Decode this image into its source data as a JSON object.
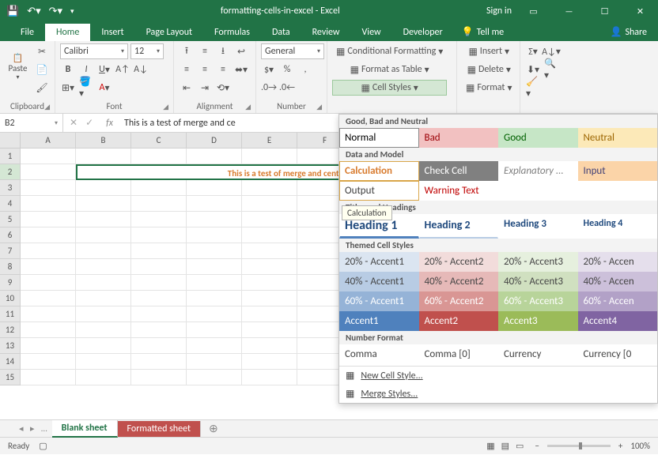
{
  "titlebar": {
    "title": "formatting-cells-in-excel - Excel",
    "signin": "Sign in"
  },
  "tabs": [
    "File",
    "Home",
    "Insert",
    "Page Layout",
    "Formulas",
    "Data",
    "Review",
    "View",
    "Developer"
  ],
  "active_tab": "Home",
  "tellme": "Tell me",
  "share": "Share",
  "ribbon": {
    "clipboard": "Clipboard",
    "paste": "Paste",
    "font_group": "Font",
    "font_name": "Calibri",
    "font_size": "12",
    "alignment": "Alignment",
    "number": "Number",
    "number_format": "General",
    "cond_fmt": "Conditional Formatting",
    "table_fmt": "Format as Table",
    "cell_styles": "Cell Styles",
    "insert": "Insert",
    "delete": "Delete",
    "format": "Format"
  },
  "namebox": "B2",
  "formula": "This is a test of merge and ce",
  "columns": [
    "A",
    "B",
    "C",
    "D",
    "E",
    "F"
  ],
  "row_count": 15,
  "merged_text": "This is a test of merge and center.",
  "gallery": {
    "sec1": "Good, Bad and Neutral",
    "row1": [
      {
        "label": "Normal",
        "bg": "#ffffff",
        "color": "#000",
        "border": "1px solid #888"
      },
      {
        "label": "Bad",
        "bg": "#f2c1c1",
        "color": "#9c0006"
      },
      {
        "label": "Good",
        "bg": "#c6e6c6",
        "color": "#006100"
      },
      {
        "label": "Neutral",
        "bg": "#fce9b8",
        "color": "#9c6500"
      }
    ],
    "sec2": "Data and Model",
    "row2": [
      {
        "label": "Calculation",
        "bg": "#ffffff",
        "color": "#d87b2e",
        "border": "1px solid #d9a64a",
        "bold": true
      },
      {
        "label": "Check Cell",
        "bg": "#808080",
        "color": "#ffffff"
      },
      {
        "label": "Explanatory ...",
        "bg": "#ffffff",
        "color": "#808080",
        "italic": true
      },
      {
        "label": "Input",
        "bg": "#fbd4a8",
        "color": "#3f3f76"
      }
    ],
    "row3": [
      {
        "label": "Output",
        "bg": "#ffffff",
        "color": "#3f3f3f",
        "border": "1px solid #d9a64a"
      },
      {
        "label": "Warning Text",
        "bg": "#ffffff",
        "color": "#c00000"
      }
    ],
    "tooltip": "Calculation",
    "sec3": "Titles and Headings",
    "row4": [
      {
        "label": "Heading 1",
        "color": "#1f497d",
        "size": "16px",
        "bold": true,
        "underline": "3px solid #4f81bd"
      },
      {
        "label": "Heading 2",
        "color": "#1f497d",
        "size": "14px",
        "bold": true,
        "underline": "2px solid #b8cce4"
      },
      {
        "label": "Heading 3",
        "color": "#1f497d",
        "size": "13px",
        "bold": true
      },
      {
        "label": "Heading 4",
        "color": "#1f497d",
        "size": "12px",
        "bold": true
      }
    ],
    "sec4": "Themed Cell Styles",
    "themed": [
      [
        {
          "label": "20% - Accent1",
          "bg": "#dbe5f1"
        },
        {
          "label": "20% - Accent2",
          "bg": "#f2dcdb"
        },
        {
          "label": "20% - Accent3",
          "bg": "#e6f0de"
        },
        {
          "label": "20% - Accen",
          "bg": "#e5dfec"
        }
      ],
      [
        {
          "label": "40% - Accent1",
          "bg": "#b8cce4"
        },
        {
          "label": "40% - Accent2",
          "bg": "#e6b9b8"
        },
        {
          "label": "40% - Accent3",
          "bg": "#d0e0c0"
        },
        {
          "label": "40% - Accen",
          "bg": "#ccc0da"
        }
      ],
      [
        {
          "label": "60% - Accent1",
          "bg": "#95b3d7",
          "color": "#fff"
        },
        {
          "label": "60% - Accent2",
          "bg": "#d99694",
          "color": "#fff"
        },
        {
          "label": "60% - Accent3",
          "bg": "#b8d49a",
          "color": "#fff"
        },
        {
          "label": "60% - Accen",
          "bg": "#b2a1c7",
          "color": "#fff"
        }
      ],
      [
        {
          "label": "Accent1",
          "bg": "#4f81bd",
          "color": "#fff"
        },
        {
          "label": "Accent2",
          "bg": "#c0504d",
          "color": "#fff"
        },
        {
          "label": "Accent3",
          "bg": "#9bbb59",
          "color": "#fff"
        },
        {
          "label": "Accent4",
          "bg": "#8064a2",
          "color": "#fff"
        }
      ]
    ],
    "sec5": "Number Format",
    "row5": [
      {
        "label": "Comma"
      },
      {
        "label": "Comma [0]"
      },
      {
        "label": "Currency"
      },
      {
        "label": "Currency [0"
      }
    ],
    "new_style": "New Cell Style...",
    "merge_styles": "Merge Styles..."
  },
  "sheets": {
    "blank": "Blank sheet",
    "formatted": "Formatted sheet"
  },
  "status": {
    "ready": "Ready",
    "zoom": "100%"
  }
}
